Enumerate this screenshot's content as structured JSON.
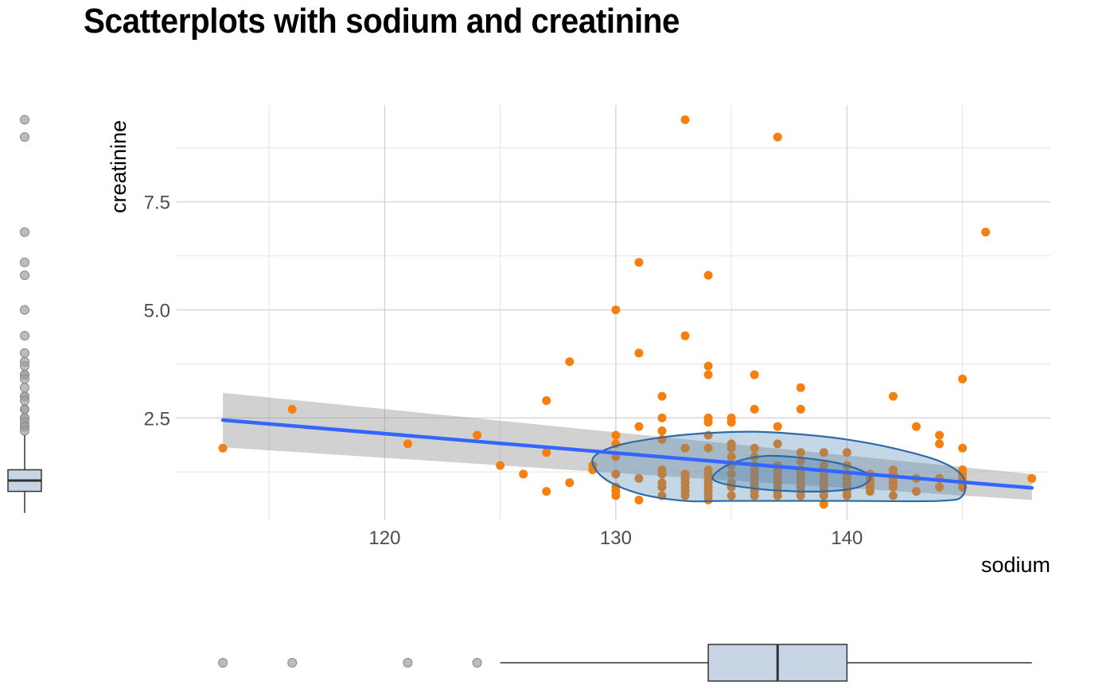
{
  "chart_data": {
    "type": "scatter",
    "title": "Scatterplots with sodium and creatinine",
    "xlabel": "sodium",
    "ylabel": "creatinine",
    "xlim": [
      111,
      148.8
    ],
    "ylim": [
      0.13,
      9.74
    ],
    "x_ticks": [
      120,
      130,
      140
    ],
    "x_tick_labels": [
      "120",
      "130",
      "140"
    ],
    "y_ticks": [
      2.5,
      5.0,
      7.5
    ],
    "y_tick_labels": [
      "2.5",
      "5.0",
      "7.5"
    ],
    "grid": true,
    "colors": {
      "points": "#f57f0f",
      "regression_line": "#3366ff",
      "confidence_band": "#999999",
      "ellipse_fill": "#4682b4",
      "ellipse_stroke": "#2e6aa5",
      "boxplot_fill": "#c6d4e3",
      "outliers": "#a0a0a0"
    },
    "points": [
      [
        113,
        1.8
      ],
      [
        116,
        2.7
      ],
      [
        121,
        1.9
      ],
      [
        124,
        2.1
      ],
      [
        125,
        1.4
      ],
      [
        126,
        1.2
      ],
      [
        127,
        2.9
      ],
      [
        127,
        1.7
      ],
      [
        127,
        0.8
      ],
      [
        128,
        3.8
      ],
      [
        128,
        1.0
      ],
      [
        129,
        1.4
      ],
      [
        129,
        1.3
      ],
      [
        130,
        5.0
      ],
      [
        130,
        2.1
      ],
      [
        130,
        1.9
      ],
      [
        130,
        1.6
      ],
      [
        130,
        1.2
      ],
      [
        130,
        0.9
      ],
      [
        130,
        0.8
      ],
      [
        130,
        0.7
      ],
      [
        131,
        6.1
      ],
      [
        131,
        4.0
      ],
      [
        131,
        2.3
      ],
      [
        131,
        1.1
      ],
      [
        131,
        0.6
      ],
      [
        132,
        3.0
      ],
      [
        132,
        2.5
      ],
      [
        132,
        2.2
      ],
      [
        132,
        2.0
      ],
      [
        132,
        1.3
      ],
      [
        132,
        1.2
      ],
      [
        132,
        1.0
      ],
      [
        132,
        0.9
      ],
      [
        132,
        0.7
      ],
      [
        133,
        9.4
      ],
      [
        133,
        4.4
      ],
      [
        133,
        1.8
      ],
      [
        133,
        1.2
      ],
      [
        133,
        1.1
      ],
      [
        133,
        1.0
      ],
      [
        133,
        0.9
      ],
      [
        133,
        0.8
      ],
      [
        133,
        0.7
      ],
      [
        134,
        5.8
      ],
      [
        134,
        3.7
      ],
      [
        134,
        3.5
      ],
      [
        134,
        2.5
      ],
      [
        134,
        2.4
      ],
      [
        134,
        2.1
      ],
      [
        134,
        1.8
      ],
      [
        134,
        1.3
      ],
      [
        134,
        1.2
      ],
      [
        134,
        1.1
      ],
      [
        134,
        1.0
      ],
      [
        134,
        0.9
      ],
      [
        134,
        0.8
      ],
      [
        134,
        0.7
      ],
      [
        134,
        0.6
      ],
      [
        135,
        2.5
      ],
      [
        135,
        2.4
      ],
      [
        135,
        1.9
      ],
      [
        135,
        1.8
      ],
      [
        135,
        1.6
      ],
      [
        135,
        1.4
      ],
      [
        135,
        1.2
      ],
      [
        135,
        1.0
      ],
      [
        135,
        0.9
      ],
      [
        135,
        0.7
      ],
      [
        136,
        3.5
      ],
      [
        136,
        2.7
      ],
      [
        136,
        1.8
      ],
      [
        136,
        1.6
      ],
      [
        136,
        1.4
      ],
      [
        136,
        1.3
      ],
      [
        136,
        1.2
      ],
      [
        136,
        1.1
      ],
      [
        136,
        1.0
      ],
      [
        136,
        0.9
      ],
      [
        136,
        0.8
      ],
      [
        136,
        0.7
      ],
      [
        137,
        9.0
      ],
      [
        137,
        2.3
      ],
      [
        137,
        1.9
      ],
      [
        137,
        1.4
      ],
      [
        137,
        1.3
      ],
      [
        137,
        1.2
      ],
      [
        137,
        1.1
      ],
      [
        137,
        1.0
      ],
      [
        137,
        0.9
      ],
      [
        137,
        0.8
      ],
      [
        137,
        0.7
      ],
      [
        138,
        3.2
      ],
      [
        138,
        2.7
      ],
      [
        138,
        1.7
      ],
      [
        138,
        1.5
      ],
      [
        138,
        1.3
      ],
      [
        138,
        1.2
      ],
      [
        138,
        1.1
      ],
      [
        138,
        1.0
      ],
      [
        138,
        0.9
      ],
      [
        138,
        0.8
      ],
      [
        138,
        0.7
      ],
      [
        139,
        1.7
      ],
      [
        139,
        1.4
      ],
      [
        139,
        1.2
      ],
      [
        139,
        1.1
      ],
      [
        139,
        1.0
      ],
      [
        139,
        0.9
      ],
      [
        139,
        0.8
      ],
      [
        139,
        0.7
      ],
      [
        139,
        0.5
      ],
      [
        140,
        1.7
      ],
      [
        140,
        1.4
      ],
      [
        140,
        1.2
      ],
      [
        140,
        1.1
      ],
      [
        140,
        1.0
      ],
      [
        140,
        0.9
      ],
      [
        140,
        0.8
      ],
      [
        140,
        0.7
      ],
      [
        141,
        1.2
      ],
      [
        141,
        1.1
      ],
      [
        141,
        1.0
      ],
      [
        141,
        0.9
      ],
      [
        141,
        0.8
      ],
      [
        142,
        3.0
      ],
      [
        142,
        1.3
      ],
      [
        142,
        1.2
      ],
      [
        142,
        1.1
      ],
      [
        142,
        1.0
      ],
      [
        142,
        0.9
      ],
      [
        142,
        0.7
      ],
      [
        143,
        2.3
      ],
      [
        143,
        1.1
      ],
      [
        143,
        0.8
      ],
      [
        144,
        2.1
      ],
      [
        144,
        1.9
      ],
      [
        144,
        1.1
      ],
      [
        144,
        0.9
      ],
      [
        145,
        3.4
      ],
      [
        145,
        1.8
      ],
      [
        145,
        1.3
      ],
      [
        145,
        1.2
      ],
      [
        145,
        1.1
      ],
      [
        145,
        1.0
      ],
      [
        145,
        0.9
      ],
      [
        146,
        6.8
      ],
      [
        148,
        1.1
      ]
    ],
    "regression": {
      "x": [
        113,
        148
      ],
      "y": [
        2.45,
        0.88
      ],
      "band_low": [
        1.82,
        0.6
      ],
      "band_high": [
        3.08,
        1.2
      ]
    },
    "density_contours": [
      {
        "level": "outer",
        "points": [
          [
            129,
            1.55
          ],
          [
            130,
            1.85
          ],
          [
            132,
            2.05
          ],
          [
            134,
            2.15
          ],
          [
            136,
            2.18
          ],
          [
            138,
            2.12
          ],
          [
            140,
            2.0
          ],
          [
            142,
            1.8
          ],
          [
            144,
            1.5
          ],
          [
            145,
            1.15
          ],
          [
            145,
            0.7
          ],
          [
            144,
            0.58
          ],
          [
            140,
            0.58
          ],
          [
            135,
            0.58
          ],
          [
            133,
            0.58
          ],
          [
            131,
            0.75
          ],
          [
            129.5,
            1.1
          ]
        ]
      },
      {
        "level": "inner",
        "points": [
          [
            134.2,
            1.15
          ],
          [
            135,
            1.45
          ],
          [
            136.5,
            1.62
          ],
          [
            138.5,
            1.55
          ],
          [
            140,
            1.4
          ],
          [
            141,
            1.15
          ],
          [
            140.5,
            0.9
          ],
          [
            139,
            0.8
          ],
          [
            137,
            0.82
          ],
          [
            135.5,
            0.9
          ],
          [
            134.5,
            1.0
          ]
        ]
      }
    ],
    "marginal_boxplots": {
      "creatinine": {
        "q1": 0.8,
        "median": 1.05,
        "q3": 1.3,
        "whisker_low": 0.3,
        "whisker_high": 2.1,
        "outliers": [
          9.4,
          9.0,
          6.8,
          6.1,
          5.8,
          5.0,
          4.4,
          4.0,
          3.8,
          3.7,
          3.5,
          3.5,
          3.4,
          3.2,
          3.0,
          3.0,
          2.9,
          2.7,
          2.7,
          2.5,
          2.5,
          2.4,
          2.3,
          2.3,
          2.2
        ]
      },
      "sodium": {
        "q1": 134,
        "median": 137,
        "q3": 140,
        "whisker_low": 125,
        "whisker_high": 148,
        "outliers": [
          113,
          116,
          121,
          124
        ]
      }
    }
  }
}
